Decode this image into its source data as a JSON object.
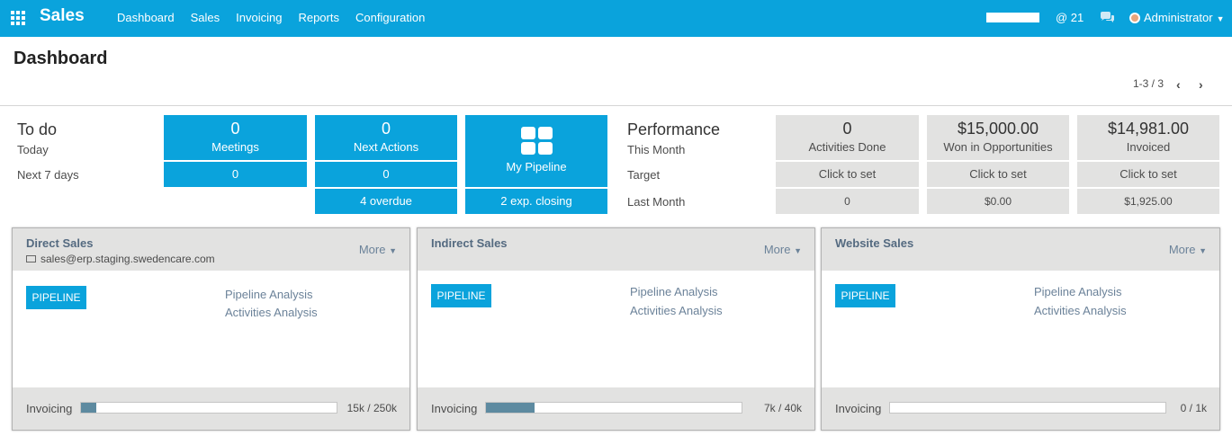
{
  "app": {
    "name": "Sales"
  },
  "nav": {
    "menu": [
      "Dashboard",
      "Sales",
      "Invoicing",
      "Reports",
      "Configuration"
    ],
    "mentions": "@ 21",
    "user": "Administrator"
  },
  "page": {
    "title": "Dashboard"
  },
  "pager": {
    "range": "1-3 / 3"
  },
  "todo": {
    "title": "To do",
    "row_today": "Today",
    "row_next7": "Next 7 days",
    "meetings": {
      "value": "0",
      "label": "Meetings",
      "next7": "0"
    },
    "next_actions": {
      "value": "0",
      "label": "Next Actions",
      "next7": "0",
      "overdue": "4 overdue"
    },
    "pipeline": {
      "label": "My Pipeline",
      "closing": "2 exp. closing"
    }
  },
  "performance": {
    "title": "Performance",
    "row_this_month": "This Month",
    "row_target": "Target",
    "row_last_month": "Last Month",
    "activities": {
      "value": "0",
      "label": "Activities Done",
      "target": "Click to set",
      "last": "0"
    },
    "won": {
      "value": "$15,000.00",
      "label": "Won in Opportunities",
      "target": "Click to set",
      "last": "$0.00"
    },
    "invoiced": {
      "value": "$14,981.00",
      "label": "Invoiced",
      "target": "Click to set",
      "last": "$1,925.00"
    }
  },
  "teams": [
    {
      "name": "Direct Sales",
      "email": "sales@erp.staging.swedencare.com",
      "more": "More",
      "pipeline": "PIPELINE",
      "links": [
        "Pipeline Analysis",
        "Activities Analysis"
      ],
      "invoicing_label": "Invoicing",
      "invoicing_value": "15k / 250k",
      "progress": 0.06
    },
    {
      "name": "Indirect Sales",
      "more": "More",
      "pipeline": "PIPELINE",
      "links": [
        "Pipeline Analysis",
        "Activities Analysis"
      ],
      "invoicing_label": "Invoicing",
      "invoicing_value": "7k / 40k",
      "progress": 0.19
    },
    {
      "name": "Website Sales",
      "more": "More",
      "pipeline": "PIPELINE",
      "links": [
        "Pipeline Analysis",
        "Activities Analysis"
      ],
      "invoicing_label": "Invoicing",
      "invoicing_value": "0 / 1k",
      "progress": 0
    }
  ],
  "colors": {
    "primary": "#0aa3dc",
    "panel": "#e2e2e1",
    "progress": "#5d8aa0",
    "link": "#6b8299"
  }
}
